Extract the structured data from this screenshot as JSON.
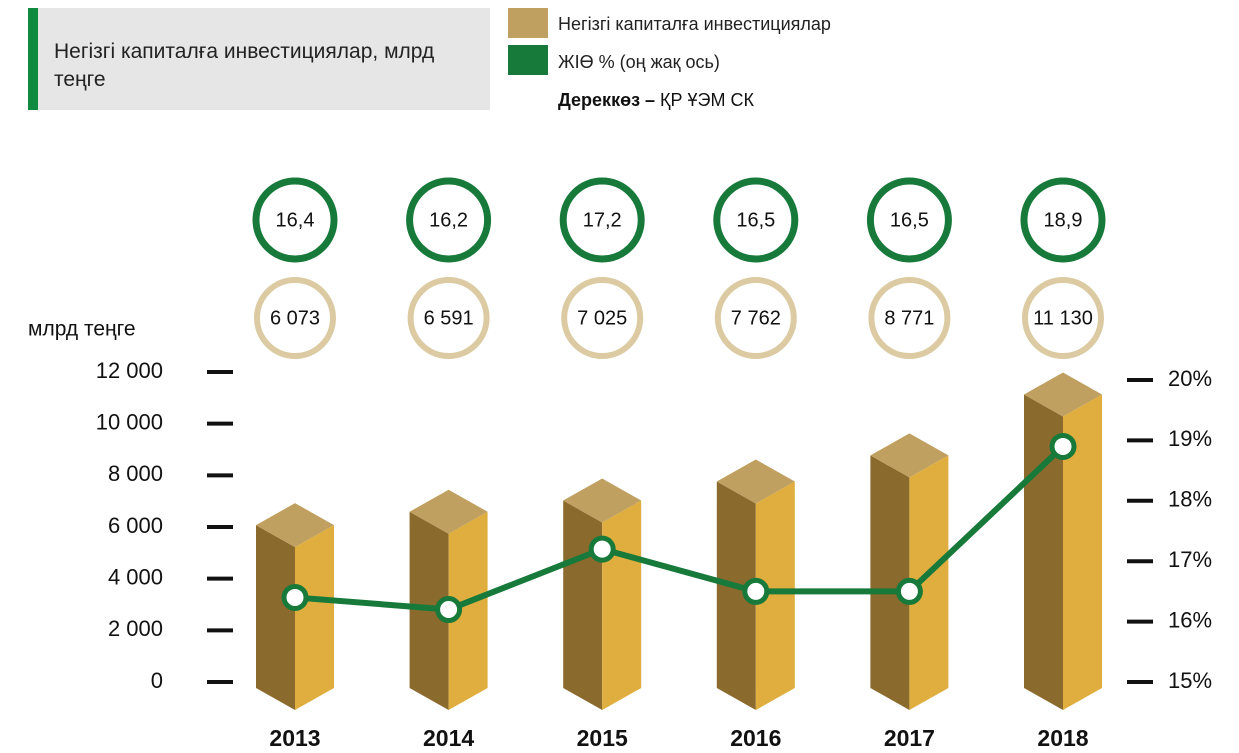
{
  "chart_data": {
    "type": "bar_line",
    "title": "Негізгі капиталға инвестициялар, млрд теңге",
    "source": {
      "label": "Дереккөз –",
      "text": "ҚР ҰЭМ СК"
    },
    "ylabel": "млрд теңге",
    "categories": [
      "2013",
      "2014",
      "2015",
      "2016",
      "2017",
      "2018"
    ],
    "series": [
      {
        "name": "Негізгі капиталға инвестициялар",
        "color": "#bfa060",
        "type": "bar",
        "values": [
          6073,
          6591,
          7025,
          7762,
          8771,
          11130
        ],
        "value_labels": [
          "6 073",
          "6 591",
          "7 025",
          "7 762",
          "8 771",
          "11 130"
        ]
      },
      {
        "name": "ЖІӨ % (оң жақ ось)",
        "color": "#17793a",
        "type": "line",
        "axis": "y2",
        "values": [
          16.4,
          16.2,
          17.2,
          16.5,
          16.5,
          18.9
        ],
        "value_labels": [
          "16,4",
          "16,2",
          "17,2",
          "16,5",
          "16,5",
          "18,9"
        ]
      }
    ],
    "ylim": [
      0,
      12000
    ],
    "yticks": [
      {
        "value": 0,
        "label": "0"
      },
      {
        "value": 2000,
        "label": "2 000"
      },
      {
        "value": 4000,
        "label": "4 000"
      },
      {
        "value": 6000,
        "label": "6 000"
      },
      {
        "value": 8000,
        "label": "8 000"
      },
      {
        "value": 10000,
        "label": "10 000"
      },
      {
        "value": 12000,
        "label": "12 000"
      }
    ],
    "y2lim": [
      15,
      20
    ],
    "y2ticks": [
      {
        "value": 15,
        "label": "15%"
      },
      {
        "value": 16,
        "label": "16%"
      },
      {
        "value": 17,
        "label": "17%"
      },
      {
        "value": 18,
        "label": "18%"
      },
      {
        "value": 19,
        "label": "19%"
      },
      {
        "value": 20,
        "label": "20%"
      }
    ]
  }
}
